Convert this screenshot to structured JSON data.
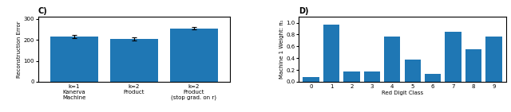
{
  "chart_data": [
    {
      "type": "bar",
      "title": "C)",
      "ylabel": "Reconstruction Error",
      "categories": [
        "k=1\nKanerva\nMachine",
        "k=2\nProduct",
        "k=2\nProduct\n(stop grad. on r)"
      ],
      "values": [
        215,
        205,
        255
      ],
      "errors": [
        8,
        8,
        6
      ],
      "ylim": [
        0,
        310
      ],
      "yticks": [
        0,
        100,
        200,
        300
      ]
    },
    {
      "type": "bar",
      "title": "D)",
      "xlabel": "Red Digit Class",
      "ylabel": "Machine 1 Weight: π₁",
      "categories": [
        "0",
        "1",
        "2",
        "3",
        "4",
        "5",
        "6",
        "7",
        "8",
        "9"
      ],
      "values": [
        0.08,
        0.97,
        0.18,
        0.18,
        0.77,
        0.38,
        0.13,
        0.84,
        0.55,
        0.77
      ],
      "ylim": [
        0,
        1.1
      ],
      "yticks": [
        0.0,
        0.2,
        0.4,
        0.6,
        0.8,
        1.0
      ]
    }
  ]
}
